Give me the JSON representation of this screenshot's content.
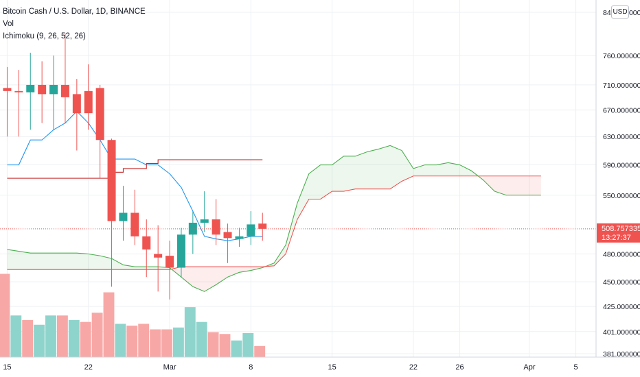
{
  "header": {
    "title": "Bitcoin Cash / U.S. Dollar, 1D, BINANCE",
    "vol_label": "Vol",
    "ichimoku_label": "Ichimoku (9, 26, 52, 26)"
  },
  "currency_button": "USD",
  "colors": {
    "up": "#26a69a",
    "down": "#ef5350",
    "vol_up": "#8fd4cc",
    "vol_down": "#f7a8a6",
    "conversion": "#2196f3",
    "base": "#c62828",
    "span_a": "#4caf50",
    "span_b": "#ef5350",
    "grid": "#eef0f3"
  },
  "price_axis": {
    "ticks": [
      "840.000000",
      "760.000000",
      "710.000000",
      "670.000000",
      "630.000000",
      "590.000000",
      "550.000000",
      "480.000000",
      "450.000000",
      "425.000000",
      "401.000000",
      "381.000000"
    ],
    "scale": "log",
    "current_price": "508.757335",
    "countdown": "13:27:37"
  },
  "time_axis": {
    "ticks": [
      "15",
      "22",
      "Mar",
      "8",
      "15",
      "22",
      "26",
      "Apr",
      "5"
    ]
  },
  "chart_data": {
    "type": "candlestick",
    "x_start": "2021-02-15",
    "candles": [
      {
        "o": 705,
        "h": 740,
        "l": 630,
        "c": 700
      },
      {
        "o": 700,
        "h": 735,
        "l": 630,
        "c": 698
      },
      {
        "o": 698,
        "h": 765,
        "l": 640,
        "c": 710
      },
      {
        "o": 710,
        "h": 750,
        "l": 650,
        "c": 695
      },
      {
        "o": 695,
        "h": 760,
        "l": 640,
        "c": 710
      },
      {
        "o": 710,
        "h": 800,
        "l": 650,
        "c": 690
      },
      {
        "o": 695,
        "h": 720,
        "l": 610,
        "c": 665
      },
      {
        "o": 700,
        "h": 745,
        "l": 640,
        "c": 665
      },
      {
        "o": 705,
        "h": 710,
        "l": 572,
        "c": 625
      },
      {
        "o": 625,
        "h": 627,
        "l": 445,
        "c": 518
      },
      {
        "o": 518,
        "h": 562,
        "l": 495,
        "c": 528
      },
      {
        "o": 528,
        "h": 557,
        "l": 490,
        "c": 500
      },
      {
        "o": 500,
        "h": 520,
        "l": 455,
        "c": 485
      },
      {
        "o": 480,
        "h": 513,
        "l": 440,
        "c": 476
      },
      {
        "o": 478,
        "h": 495,
        "l": 432,
        "c": 465
      },
      {
        "o": 465,
        "h": 510,
        "l": 455,
        "c": 502
      },
      {
        "o": 502,
        "h": 530,
        "l": 480,
        "c": 516
      },
      {
        "o": 516,
        "h": 555,
        "l": 505,
        "c": 520
      },
      {
        "o": 520,
        "h": 545,
        "l": 490,
        "c": 502
      },
      {
        "o": 505,
        "h": 515,
        "l": 470,
        "c": 498
      },
      {
        "o": 497,
        "h": 510,
        "l": 488,
        "c": 500
      },
      {
        "o": 500,
        "h": 530,
        "l": 490,
        "c": 514
      },
      {
        "o": 515,
        "h": 528,
        "l": 495,
        "c": 508.76
      }
    ],
    "volume": [
      0.9,
      0.45,
      0.4,
      0.35,
      0.45,
      0.45,
      0.4,
      0.38,
      0.48,
      0.7,
      0.36,
      0.34,
      0.36,
      0.3,
      0.3,
      0.32,
      0.54,
      0.38,
      0.27,
      0.25,
      0.18,
      0.26,
      0.12
    ],
    "volume_up": [
      false,
      true,
      false,
      true,
      true,
      false,
      true,
      false,
      false,
      false,
      true,
      false,
      false,
      false,
      false,
      true,
      true,
      true,
      false,
      false,
      true,
      true,
      false
    ],
    "conversion_line": [
      590,
      590,
      625,
      625,
      640,
      650,
      668,
      650,
      625,
      598,
      598,
      598,
      590,
      590,
      578,
      560,
      530,
      500,
      497,
      495,
      497,
      500,
      500
    ],
    "base_line": [
      572,
      572,
      572,
      572,
      572,
      572,
      572,
      572,
      572,
      580,
      585,
      585,
      592,
      597,
      597,
      597,
      597,
      597,
      597,
      597,
      597,
      597,
      597
    ],
    "span_a": {
      "start_index": 0,
      "values": [
        485,
        483,
        481,
        481,
        481,
        481,
        481,
        480,
        478,
        475,
        468,
        466,
        466,
        466,
        465,
        455,
        445,
        440,
        447,
        455,
        460,
        462,
        465,
        470,
        490,
        540,
        578,
        590,
        590,
        602,
        602,
        608,
        612,
        617,
        610,
        585,
        590,
        590,
        593,
        590,
        582,
        570,
        555,
        550,
        550,
        550,
        550
      ]
    },
    "span_b": {
      "start_index": 0,
      "values": [
        463,
        463,
        463,
        463,
        463,
        463,
        463,
        463,
        463,
        463,
        463,
        463,
        463,
        463,
        463,
        466,
        466,
        466,
        466,
        466,
        466,
        466,
        466,
        467,
        480,
        520,
        545,
        545,
        555,
        555,
        558,
        558,
        558,
        558,
        568,
        575,
        575,
        575,
        575,
        575,
        575,
        575,
        575,
        575,
        575,
        575,
        575
      ]
    },
    "ylim": [
      381,
      840
    ],
    "x_ticks": [
      {
        "label": "15",
        "day": 0
      },
      {
        "label": "22",
        "day": 7
      },
      {
        "label": "Mar",
        "day": 14
      },
      {
        "label": "8",
        "day": 21
      },
      {
        "label": "15",
        "day": 28
      },
      {
        "label": "22",
        "day": 35
      },
      {
        "label": "26",
        "day": 39
      },
      {
        "label": "Apr",
        "day": 45
      },
      {
        "label": "5",
        "day": 49
      }
    ]
  }
}
